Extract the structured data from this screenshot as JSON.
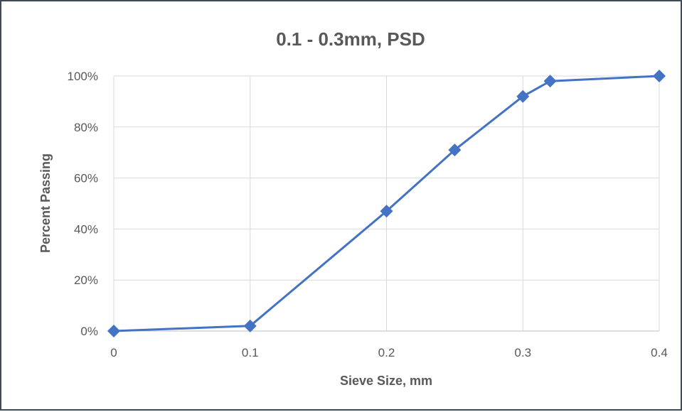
{
  "chart_data": {
    "type": "scatter",
    "title": "0.1 - 0.3mm, PSD",
    "xlabel": "Sieve Size, mm",
    "ylabel": "Percent Passing",
    "xlim": [
      0,
      0.4
    ],
    "ylim": [
      0,
      100
    ],
    "x_ticks": [
      "0",
      "0.1",
      "0.2",
      "0.3",
      "0.4"
    ],
    "x_tick_values": [
      0,
      0.1,
      0.2,
      0.3,
      0.4
    ],
    "y_ticks": [
      "0%",
      "20%",
      "40%",
      "60%",
      "80%",
      "100%"
    ],
    "y_tick_values": [
      0,
      20,
      40,
      60,
      80,
      100
    ],
    "grid": true,
    "legend": "none",
    "series": [
      {
        "x": [
          0,
          0.1,
          0.2,
          0.25,
          0.3,
          0.32,
          0.4
        ],
        "y": [
          0,
          2,
          47,
          71,
          92,
          98,
          100
        ],
        "color": "#4472c4",
        "marker": "diamond",
        "line": "straight"
      }
    ]
  }
}
